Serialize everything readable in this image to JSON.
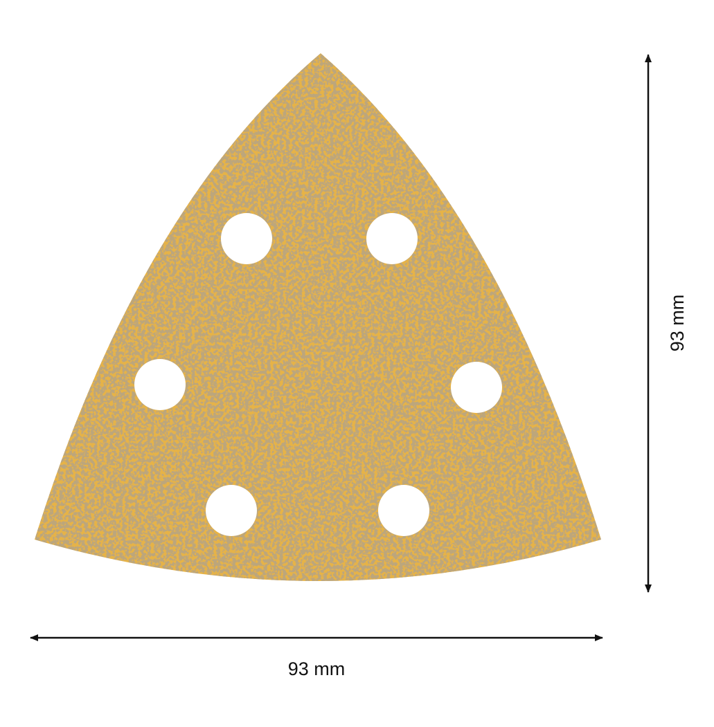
{
  "product": {
    "shape": "triangular sanding sheet",
    "hole_count": 6,
    "colors": {
      "abrasive": "#e6b347",
      "grain": "#8a6a3a",
      "holes": "#ffffff",
      "dimension_lines": "#111111"
    }
  },
  "dimensions": {
    "width_label": "93 mm",
    "height_label": "93 mm"
  }
}
